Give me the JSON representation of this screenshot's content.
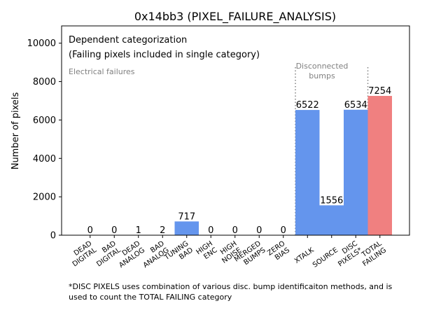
{
  "chart_data": {
    "type": "bar",
    "title": "0x14bb3 (PIXEL_FAILURE_ANALYSIS)",
    "xlabel": "",
    "ylabel": "Number of pixels",
    "ylim": [
      0,
      10900
    ],
    "yticks": [
      0,
      2000,
      4000,
      6000,
      8000,
      10000
    ],
    "grid": false,
    "categories": [
      [
        "DEAD",
        "DIGITAL"
      ],
      [
        "BAD",
        "DIGITAL"
      ],
      [
        "DEAD",
        "ANALOG"
      ],
      [
        "BAD",
        "ANALOG"
      ],
      [
        "TUNING",
        "BAD"
      ],
      [
        "HIGH",
        "ENC"
      ],
      [
        "HIGH",
        "NOISE"
      ],
      [
        "MERGED",
        "BUMPS"
      ],
      [
        "ZERO",
        "BIAS"
      ],
      [
        "XTALK"
      ],
      [
        "SOURCE"
      ],
      [
        "DISC",
        "PIXELS*"
      ],
      [
        "TOTAL",
        "FAILING"
      ]
    ],
    "values": [
      0,
      0,
      1,
      2,
      717,
      0,
      0,
      0,
      0,
      6522,
      1556,
      6534,
      7254
    ],
    "value_labels": [
      "0",
      "0",
      "1",
      "2",
      "717",
      "0",
      "0",
      "0",
      "0",
      "6522",
      "1556",
      "6534",
      "7254"
    ],
    "bar_colors": [
      "#6495ed",
      "#6495ed",
      "#6495ed",
      "#6495ed",
      "#6495ed",
      "#6495ed",
      "#6495ed",
      "#6495ed",
      "#6495ed",
      "#6495ed",
      "#6495ed",
      "#6495ed",
      "#f08080"
    ],
    "legend_lines": [
      "Dependent categorization",
      "(Failing pixels included in single category)"
    ],
    "section_labels": {
      "electrical": [
        "Electrical failures"
      ],
      "disconnected": [
        "Disconnected",
        "bumps"
      ]
    },
    "section_label_color": "#808080",
    "divider_color": "#808080",
    "dividers_after_index": [
      8,
      11
    ],
    "divider_top_value": 8750,
    "footnote_lines": [
      "*DISC PIXELS uses combination of various disc. bump identificaiton methods, and is",
      "used to count the TOTAL FAILING category"
    ]
  }
}
